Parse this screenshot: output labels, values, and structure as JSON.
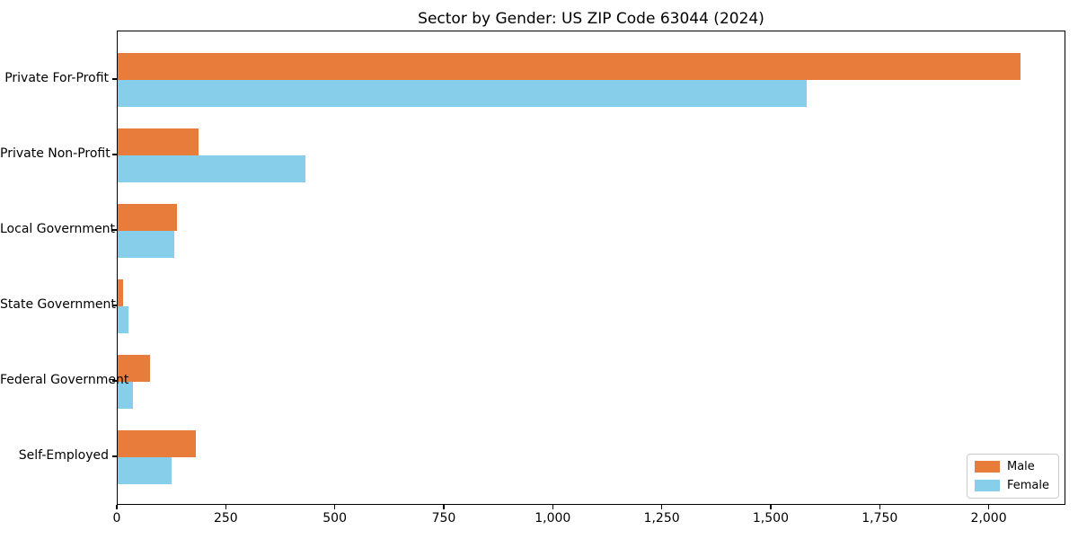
{
  "chart_data": {
    "type": "bar",
    "orientation": "horizontal",
    "title": "Sector by Gender: US ZIP Code 63044 (2024)",
    "categories": [
      "Private For-Profit",
      "Private Non-Profit",
      "Local Government",
      "State Government",
      "Federal Government",
      "Self-Employed"
    ],
    "series": [
      {
        "name": "Male",
        "color": "#e87d3b",
        "values": [
          2071,
          186,
          136,
          12,
          74,
          179
        ]
      },
      {
        "name": "Female",
        "color": "#87ceeb",
        "values": [
          1580,
          431,
          130,
          25,
          34,
          124
        ]
      }
    ],
    "xlabel": "",
    "ylabel": "",
    "xlim": [
      0,
      2176
    ],
    "xticks": [
      0,
      250,
      500,
      750,
      1000,
      1250,
      1500,
      1750,
      2000
    ],
    "xtick_labels": [
      "0",
      "250",
      "500",
      "750",
      "1,000",
      "1,250",
      "1,500",
      "1,750",
      "2,000"
    ],
    "grid": false,
    "legend_position": "lower right"
  }
}
